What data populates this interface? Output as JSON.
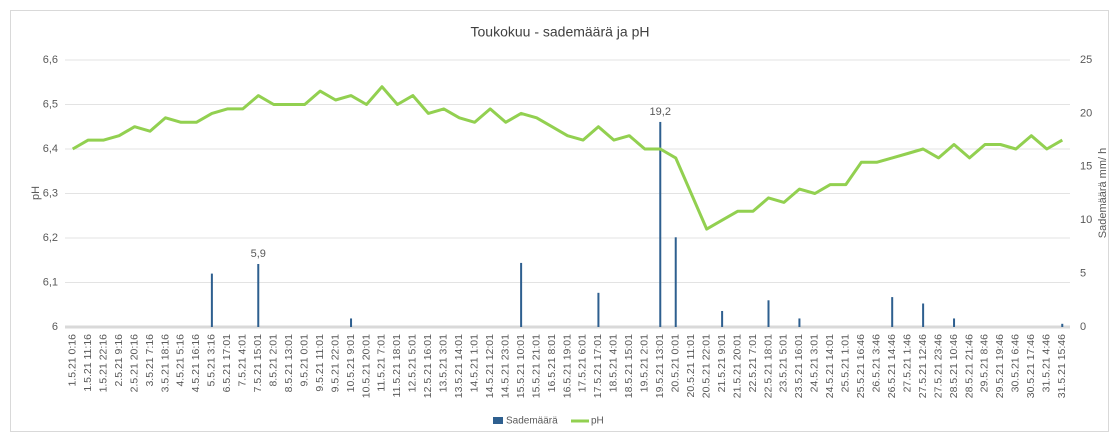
{
  "chart_data": {
    "type": "bar_line",
    "title": "Toukokuu - sademäärä ja pH",
    "y_label": "pH",
    "y2_label": "Sademäärä mm/ h",
    "categories": [
      "1.5.21 0:16",
      "1.5.21 11:16",
      "1.5.21 22:16",
      "2.5.21 9:16",
      "2.5.21 20:16",
      "3.5.21 7:16",
      "3.5.21 18:16",
      "4.5.21 5:16",
      "4.5.21 16:16",
      "5.5.21 3:16",
      "6.5.21 17:01",
      "7.5.21 4:01",
      "7.5.21 15:01",
      "8.5.21 2:01",
      "8.5.21 13:01",
      "9.5.21 0:01",
      "9.5.21 11:01",
      "9.5.21 22:01",
      "10.5.21 9:01",
      "10.5.21 20:01",
      "11.5.21 7:01",
      "11.5.21 18:01",
      "12.5.21 5:01",
      "12.5.21 16:01",
      "13.5.21 3:01",
      "13.5.21 14:01",
      "14.5.21 1:01",
      "14.5.21 12:01",
      "14.5.21 23:01",
      "15.5.21 10:01",
      "15.5.21 21:01",
      "16.5.21 8:01",
      "16.5.21 19:01",
      "17.5.21 6:01",
      "17.5.21 17:01",
      "18.5.21 4:01",
      "18.5.21 15:01",
      "19.5.21 2:01",
      "19.5.21 13:01",
      "20.5.21 0:01",
      "20.5.21 11:01",
      "20.5.21 22:01",
      "21.5.21 9:01",
      "21.5.21 20:01",
      "22.5.21 7:01",
      "22.5.21 18:01",
      "23.5.21 5:01",
      "23.5.21 16:01",
      "24.5.21 3:01",
      "24.5.21 14:01",
      "25.5.21 1:01",
      "25.5.21 16:46",
      "26.5.21 3:46",
      "26.5.21 14:46",
      "27.5.21 1:46",
      "27.5.21 12:46",
      "27.5.21 23:46",
      "28.5.21 10:46",
      "28.5.21 21:46",
      "29.5.21 8:46",
      "29.5.21 19:46",
      "30.5.21 6:46",
      "30.5.21 17:46",
      "31.5.21 4:46",
      "31.5.21 15:46"
    ],
    "series": [
      {
        "name": "Sademäärä",
        "type": "bar",
        "axis": "y2",
        "color": "#2e5f8f",
        "values": [
          0,
          0,
          0,
          0,
          0,
          0,
          0,
          0,
          0,
          5,
          0,
          0,
          5.9,
          0,
          0,
          0,
          0,
          0,
          0.8,
          0,
          0,
          0,
          0,
          0,
          0,
          0,
          0,
          0,
          0,
          6,
          0,
          0,
          0,
          0,
          3.2,
          0,
          0,
          0,
          19.2,
          8.4,
          0,
          0,
          1.5,
          0,
          0,
          2.5,
          0,
          0.8,
          0,
          0,
          0,
          0,
          0,
          2.8,
          0,
          2.2,
          0,
          0.8,
          0,
          0,
          0,
          0,
          0,
          0,
          0.3
        ],
        "value_labels": [
          null,
          null,
          null,
          null,
          null,
          null,
          null,
          null,
          null,
          null,
          null,
          null,
          "5,9",
          null,
          null,
          null,
          null,
          null,
          null,
          null,
          null,
          null,
          null,
          null,
          null,
          null,
          null,
          null,
          null,
          null,
          null,
          null,
          null,
          null,
          null,
          null,
          null,
          null,
          "19,2",
          null,
          null,
          null,
          null,
          null,
          null,
          null,
          null,
          null,
          null,
          null,
          null,
          null,
          null,
          null,
          null,
          null,
          null,
          null,
          null,
          null,
          null,
          null,
          null,
          null,
          null
        ]
      },
      {
        "name": "pH",
        "type": "line",
        "axis": "y",
        "color": "#92d050",
        "values": [
          6.4,
          6.42,
          6.42,
          6.43,
          6.45,
          6.44,
          6.47,
          6.46,
          6.46,
          6.48,
          6.49,
          6.49,
          6.52,
          6.5,
          6.5,
          6.5,
          6.53,
          6.51,
          6.52,
          6.5,
          6.54,
          6.5,
          6.52,
          6.48,
          6.49,
          6.47,
          6.46,
          6.49,
          6.46,
          6.48,
          6.47,
          6.45,
          6.43,
          6.42,
          6.45,
          6.42,
          6.43,
          6.4,
          6.4,
          6.38,
          6.3,
          6.22,
          6.24,
          6.26,
          6.26,
          6.29,
          6.28,
          6.31,
          6.3,
          6.32,
          6.32,
          6.37,
          6.37,
          6.38,
          6.39,
          6.4,
          6.38,
          6.41,
          6.38,
          6.41,
          6.41,
          6.4,
          6.43,
          6.4,
          6.42
        ]
      }
    ],
    "ylim": [
      6,
      6.6
    ],
    "yticks": [
      6,
      {
        "value": 6.1,
        "label": "6,1"
      },
      {
        "value": 6.2,
        "label": "6,2"
      },
      {
        "value": 6.3,
        "label": "6,3"
      },
      {
        "value": 6.4,
        "label": "6,4"
      },
      {
        "value": 6.5,
        "label": "6,5"
      },
      {
        "value": 6.6,
        "label": "6,6"
      }
    ],
    "y2lim": [
      0,
      25
    ],
    "y2ticks": [
      0,
      5,
      10,
      15,
      20,
      25
    ],
    "grid": true,
    "legend": "bottom"
  }
}
